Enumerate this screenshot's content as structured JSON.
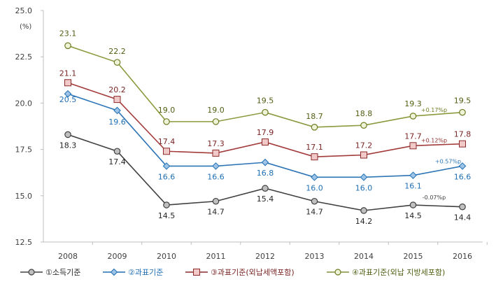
{
  "chart_data": {
    "type": "line",
    "unit_label": "(%)",
    "x": [
      "2008",
      "2009",
      "2010",
      "2011",
      "2012",
      "2013",
      "2014",
      "2015",
      "2016"
    ],
    "ylim": [
      12.5,
      25.0
    ],
    "yticks": [
      "12.5",
      "15.0",
      "17.5",
      "20.0",
      "22.5",
      "25.0"
    ],
    "grid": false,
    "legend_position": "bottom",
    "series": [
      {
        "name": "①소득기준",
        "color": "#404040",
        "marker": "circle-gray",
        "values": [
          18.3,
          17.4,
          14.5,
          14.7,
          15.4,
          14.7,
          14.2,
          14.5,
          14.4
        ],
        "labels": [
          "18.3",
          "17.4",
          "14.5",
          "14.7",
          "15.4",
          "14.7",
          "14.2",
          "14.5",
          "14.4"
        ],
        "annotation": "-0.07%p"
      },
      {
        "name": "②과표기준",
        "color": "#1f6fb4",
        "marker": "diamond-blue",
        "values": [
          20.5,
          19.6,
          16.6,
          16.6,
          16.8,
          16.0,
          16.0,
          16.1,
          16.6
        ],
        "labels": [
          "20.5",
          "19.6",
          "16.6",
          "16.6",
          "16.8",
          "16.0",
          "16.0",
          "16.1",
          "16.6"
        ],
        "annotation": "+0.57%p"
      },
      {
        "name": "③과표기준(외납세액포함)",
        "color": "#8c2a2a",
        "marker": "square-pink",
        "values": [
          21.1,
          20.2,
          17.4,
          17.3,
          17.9,
          17.1,
          17.2,
          17.7,
          17.8
        ],
        "labels": [
          "21.1",
          "20.2",
          "17.4",
          "17.3",
          "17.9",
          "17.1",
          "17.2",
          "17.7",
          "17.8"
        ],
        "annotation": "+0.12%p"
      },
      {
        "name": "④과표기준(외납 지방세포함)",
        "color": "#5a6e1a",
        "marker": "circle-green",
        "values": [
          23.1,
          22.2,
          19.0,
          19.0,
          19.5,
          18.7,
          18.8,
          19.3,
          19.5
        ],
        "labels": [
          "23.1",
          "22.2",
          "19.0",
          "19.0",
          "19.5",
          "18.7",
          "18.8",
          "19.3",
          "19.5"
        ],
        "annotation": "+0.17%p"
      }
    ]
  }
}
